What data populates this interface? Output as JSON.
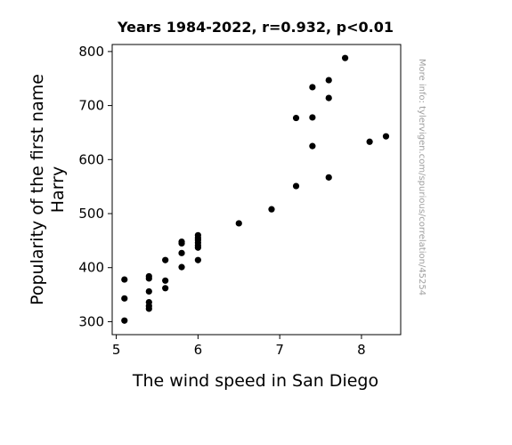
{
  "chart_data": {
    "type": "scatter",
    "title": "Years 1984-2022, r=0.932, p<0.01",
    "xlabel": "The wind speed in San Diego",
    "ylabel_lines": [
      "Popularity of the first name",
      "Harry"
    ],
    "watermark": "More info: tylervigen.com/spurious/correlation/45254",
    "xlim": [
      4.95,
      8.48
    ],
    "ylim": [
      276,
      813
    ],
    "x_ticks": [
      5,
      6,
      7,
      8
    ],
    "y_ticks": [
      300,
      400,
      500,
      600,
      700,
      800
    ],
    "grid": false,
    "marker_color": "#000000",
    "points": [
      {
        "x": 5.1,
        "y": 302
      },
      {
        "x": 5.1,
        "y": 343
      },
      {
        "x": 5.1,
        "y": 378
      },
      {
        "x": 5.4,
        "y": 324
      },
      {
        "x": 5.4,
        "y": 329
      },
      {
        "x": 5.4,
        "y": 336
      },
      {
        "x": 5.4,
        "y": 356
      },
      {
        "x": 5.4,
        "y": 380
      },
      {
        "x": 5.4,
        "y": 384
      },
      {
        "x": 5.6,
        "y": 362
      },
      {
        "x": 5.6,
        "y": 376
      },
      {
        "x": 5.6,
        "y": 414
      },
      {
        "x": 5.8,
        "y": 401
      },
      {
        "x": 5.8,
        "y": 427
      },
      {
        "x": 5.8,
        "y": 445
      },
      {
        "x": 5.8,
        "y": 448
      },
      {
        "x": 6.0,
        "y": 414
      },
      {
        "x": 6.0,
        "y": 437
      },
      {
        "x": 6.0,
        "y": 441
      },
      {
        "x": 6.0,
        "y": 446
      },
      {
        "x": 6.0,
        "y": 451
      },
      {
        "x": 6.0,
        "y": 455
      },
      {
        "x": 6.0,
        "y": 460
      },
      {
        "x": 6.5,
        "y": 482
      },
      {
        "x": 6.9,
        "y": 508
      },
      {
        "x": 7.2,
        "y": 551
      },
      {
        "x": 7.2,
        "y": 677
      },
      {
        "x": 7.4,
        "y": 625
      },
      {
        "x": 7.4,
        "y": 678
      },
      {
        "x": 7.4,
        "y": 734
      },
      {
        "x": 7.6,
        "y": 567
      },
      {
        "x": 7.6,
        "y": 714
      },
      {
        "x": 7.6,
        "y": 747
      },
      {
        "x": 7.8,
        "y": 788
      },
      {
        "x": 8.1,
        "y": 633
      },
      {
        "x": 8.3,
        "y": 643
      }
    ]
  }
}
